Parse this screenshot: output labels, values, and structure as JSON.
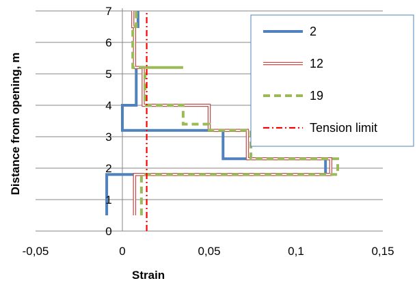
{
  "chart_data": {
    "type": "line",
    "xlabel": "Strain",
    "ylabel": "Distance from opening, m",
    "xlim": [
      -0.05,
      0.15
    ],
    "ylim": [
      0,
      7
    ],
    "x_tick_labels": [
      "-0,05",
      "0",
      "0,05",
      "0,1",
      "0,15"
    ],
    "x_ticks": [
      -0.05,
      0,
      0.05,
      0.1,
      0.15
    ],
    "y_tick_labels": [
      "0",
      "1",
      "2",
      "3",
      "4",
      "5",
      "6",
      "7"
    ],
    "y_ticks": [
      0,
      1,
      2,
      3,
      4,
      5,
      6,
      7
    ],
    "grid": "horizontal",
    "legend_position": "top-right",
    "series": [
      {
        "name": "2",
        "color": "#4F81BD",
        "style": "solid-thick",
        "points": [
          [
            -0.009,
            0.5
          ],
          [
            -0.009,
            1.8
          ],
          [
            0.117,
            1.8
          ],
          [
            0.117,
            2.3
          ],
          [
            0.058,
            2.3
          ],
          [
            0.058,
            3.2
          ],
          [
            0.0,
            3.2
          ],
          [
            0.0,
            4.0
          ],
          [
            0.008,
            4.0
          ],
          [
            0.008,
            5.2
          ],
          [
            0.007,
            5.2
          ],
          [
            0.007,
            6.5
          ],
          [
            0.009,
            6.5
          ],
          [
            0.009,
            7.0
          ]
        ]
      },
      {
        "name": "12",
        "color": "#C0504D",
        "style": "double-line",
        "points": [
          [
            0.007,
            0.5
          ],
          [
            0.007,
            1.8
          ],
          [
            0.12,
            1.8
          ],
          [
            0.12,
            2.3
          ],
          [
            0.072,
            2.3
          ],
          [
            0.072,
            3.2
          ],
          [
            0.05,
            3.2
          ],
          [
            0.05,
            4.0
          ],
          [
            0.012,
            4.0
          ],
          [
            0.012,
            5.2
          ],
          [
            0.007,
            5.2
          ],
          [
            0.007,
            6.5
          ],
          [
            0.006,
            6.5
          ],
          [
            0.006,
            7.0
          ]
        ]
      },
      {
        "name": "19",
        "color": "#9BBB59",
        "style": "dashed-thick",
        "points": [
          [
            0.011,
            0.5
          ],
          [
            0.011,
            1.8
          ],
          [
            0.124,
            1.8
          ],
          [
            0.124,
            2.3
          ],
          [
            0.074,
            2.3
          ],
          [
            0.074,
            3.2
          ],
          [
            0.05,
            3.2
          ],
          [
            0.05,
            3.4
          ],
          [
            0.035,
            3.4
          ],
          [
            0.035,
            4.0
          ],
          [
            0.013,
            4.0
          ],
          [
            0.013,
            5.2
          ],
          [
            0.035,
            5.2
          ],
          [
            0.035,
            5.2
          ],
          [
            0.012,
            5.2
          ],
          [
            0.012,
            5.2
          ],
          [
            0.006,
            5.2
          ],
          [
            0.006,
            6.5
          ],
          [
            0.008,
            6.5
          ],
          [
            0.008,
            7.0
          ]
        ]
      },
      {
        "name": "Tension limit",
        "color": "#FF0000",
        "style": "dash-dot",
        "points": [
          [
            0.014,
            0.0
          ],
          [
            0.014,
            7.0
          ]
        ]
      }
    ]
  }
}
